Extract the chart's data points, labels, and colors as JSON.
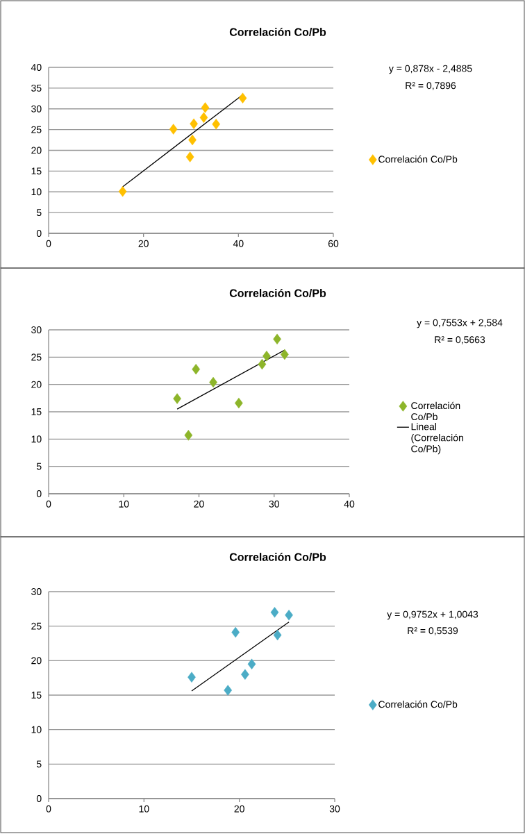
{
  "chart_data": [
    {
      "type": "scatter",
      "title": "Correlación Co/Pb",
      "xlim": [
        0,
        60
      ],
      "ylim": [
        0,
        40
      ],
      "xticks": [
        0,
        20,
        40,
        60
      ],
      "yticks": [
        0,
        5,
        10,
        15,
        20,
        25,
        30,
        35,
        40
      ],
      "grid": "y",
      "legend": "right",
      "annotations": [
        "y = 0,878x - 2,4885",
        "R² = 0,7896"
      ],
      "series": [
        {
          "name": "Correlación Co/Pb",
          "marker": "diamond",
          "color": "#ffc000",
          "x": [
            15.6,
            26.3,
            29.8,
            30.3,
            30.6,
            32.7,
            33.0,
            35.3,
            40.9
          ],
          "values": [
            10.1,
            25.1,
            18.4,
            22.5,
            26.4,
            27.9,
            30.3,
            26.3,
            32.6
          ]
        },
        {
          "type": "line",
          "marker": "none",
          "color": "#000000",
          "x": [
            15.6,
            40.9
          ],
          "values": [
            11.2,
            33.4
          ]
        }
      ]
    },
    {
      "type": "scatter",
      "title": "Correlación Co/Pb",
      "xlim": [
        0,
        40
      ],
      "ylim": [
        0,
        30
      ],
      "xticks": [
        0,
        10,
        20,
        30,
        40
      ],
      "yticks": [
        0,
        5,
        10,
        15,
        20,
        25,
        30
      ],
      "grid": "y",
      "legend": "right",
      "annotations": [
        "y = 0,7553x + 2,584",
        "R² = 0,5663"
      ],
      "series": [
        {
          "name": "Correlación Co/Pb",
          "marker": "diamond",
          "color": "#8db52a",
          "x": [
            17.1,
            18.6,
            19.6,
            21.9,
            25.3,
            28.4,
            29.0,
            30.4,
            31.4
          ],
          "values": [
            17.4,
            10.7,
            22.8,
            20.4,
            16.6,
            23.7,
            25.2,
            28.3,
            25.5
          ]
        },
        {
          "type": "line",
          "marker": "none",
          "name": "Lineal (Correlación Co/Pb)",
          "color": "#000000",
          "x": [
            17.1,
            31.4
          ],
          "values": [
            15.5,
            26.3
          ]
        }
      ]
    },
    {
      "type": "scatter",
      "title": "Correlación Co/Pb",
      "xlim": [
        0,
        30
      ],
      "ylim": [
        0,
        30
      ],
      "xticks": [
        0,
        10,
        20,
        30
      ],
      "yticks": [
        0,
        5,
        10,
        15,
        20,
        25,
        30
      ],
      "grid": "y",
      "legend": "right",
      "annotations": [
        "y = 0,9752x + 1,0043",
        "R² = 0,5539"
      ],
      "series": [
        {
          "name": "Correlación Co/Pb",
          "marker": "diamond",
          "color": "#4bacc6",
          "x": [
            15.0,
            18.8,
            19.6,
            20.6,
            21.3,
            23.7,
            24.0,
            25.2
          ],
          "values": [
            17.6,
            15.7,
            24.1,
            18.0,
            19.5,
            27.0,
            23.7,
            26.6
          ]
        },
        {
          "type": "line",
          "marker": "none",
          "color": "#000000",
          "x": [
            15.0,
            25.2
          ],
          "values": [
            15.6,
            25.6
          ]
        }
      ]
    }
  ]
}
